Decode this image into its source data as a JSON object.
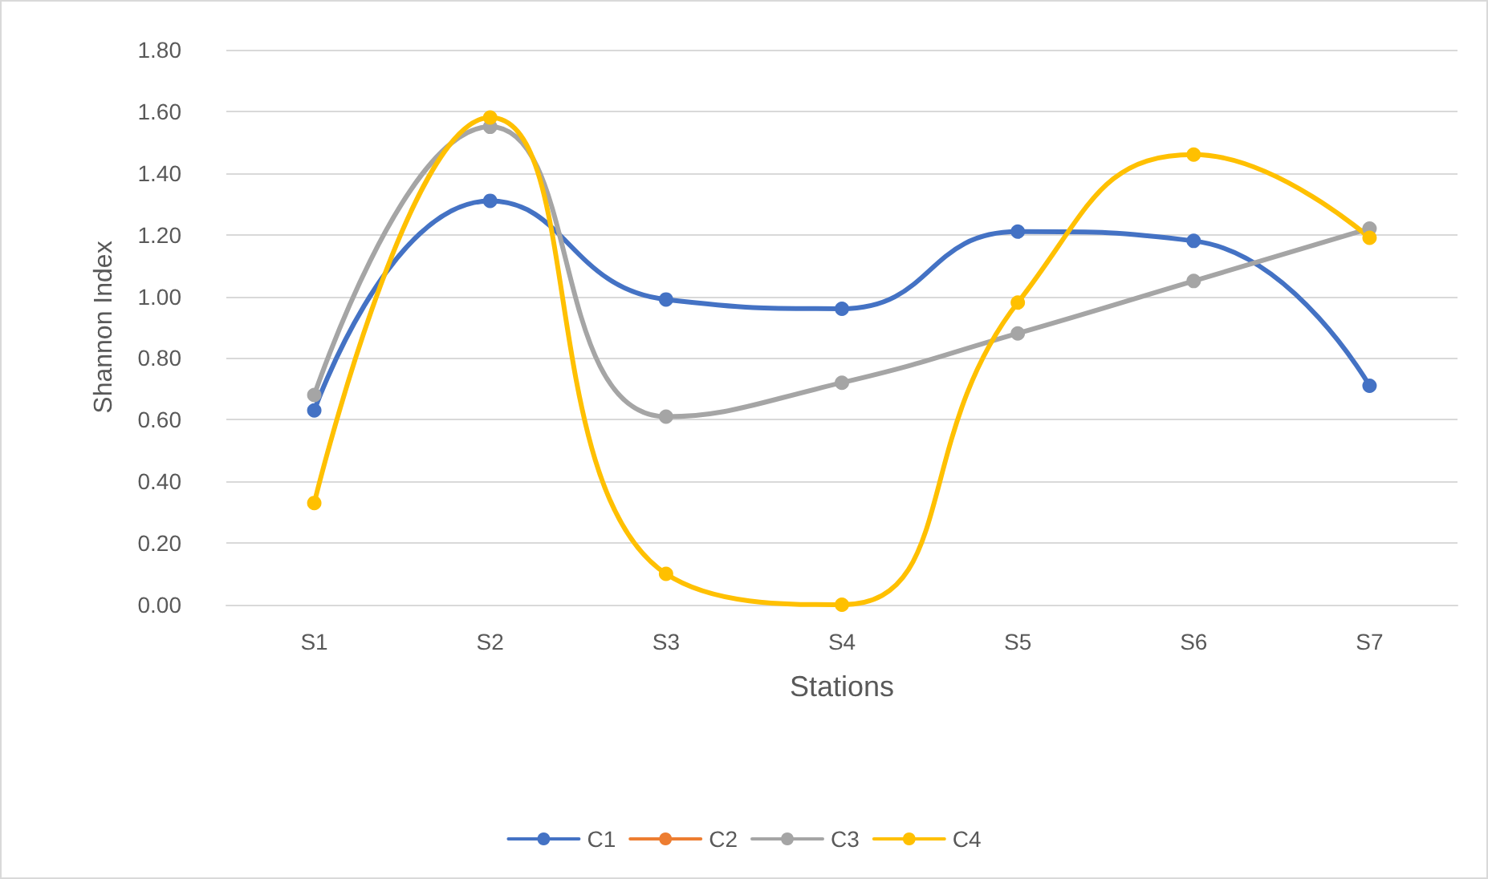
{
  "chart_data": {
    "type": "line",
    "xlabel": "Stations",
    "ylabel": "Shannon Index",
    "categories": [
      "S1",
      "S2",
      "S3",
      "S4",
      "S5",
      "S6",
      "S7"
    ],
    "series": [
      {
        "name": "C1",
        "color": "#4472c4",
        "values": [
          0.63,
          1.31,
          0.99,
          0.96,
          1.21,
          1.18,
          0.71
        ]
      },
      {
        "name": "C2",
        "color": "#ed7d31",
        "values": [
          null,
          null,
          null,
          null,
          null,
          null,
          null
        ]
      },
      {
        "name": "C3",
        "color": "#a5a5a5",
        "values": [
          0.68,
          1.55,
          0.61,
          0.72,
          0.88,
          1.05,
          1.22
        ]
      },
      {
        "name": "C4",
        "color": "#ffc000",
        "values": [
          0.33,
          1.58,
          0.1,
          0.0,
          0.98,
          1.46,
          1.19
        ]
      }
    ],
    "ylim": [
      0,
      1.8
    ],
    "yticks": [
      {
        "value": 0,
        "label": "0.00"
      },
      {
        "value": 0.2,
        "label": "0.20"
      },
      {
        "value": 0.4,
        "label": "0.40"
      },
      {
        "value": 0.6,
        "label": "0.60"
      },
      {
        "value": 0.8,
        "label": "0.80"
      },
      {
        "value": 1,
        "label": "1.00"
      },
      {
        "value": 1.2,
        "label": "1.20"
      },
      {
        "value": 1.4,
        "label": "1.40"
      },
      {
        "value": 1.6,
        "label": "1.60"
      },
      {
        "value": 1.8,
        "label": "1.80"
      }
    ],
    "grid": "y",
    "legend": "bottom",
    "marker": "circle",
    "line_style": "solid"
  }
}
